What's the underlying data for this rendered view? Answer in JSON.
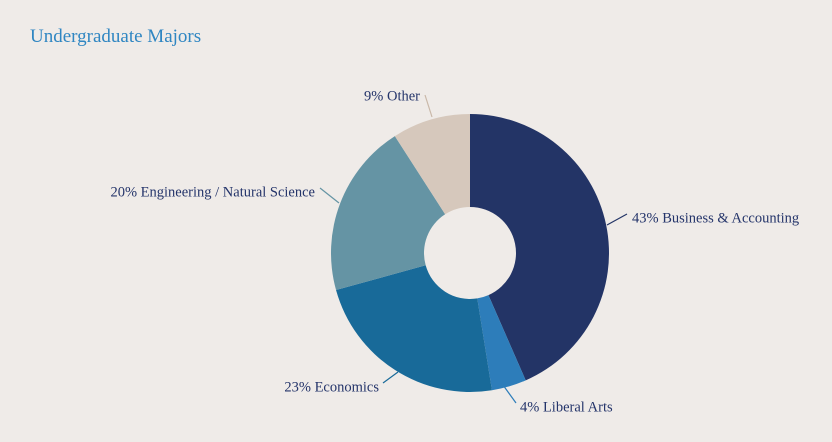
{
  "page": {
    "title": "Undergraduate Majors"
  },
  "chart_data": {
    "type": "pie",
    "donut": true,
    "title": "Undergraduate Majors",
    "slices": [
      {
        "label": "43% Business & Accounting",
        "value": 43,
        "color": "#233466",
        "label_color": "#24346a"
      },
      {
        "label": "4% Liberal Arts",
        "value": 4,
        "color": "#2d7dba",
        "label_color": "#24346a"
      },
      {
        "label": "23% Economics",
        "value": 23,
        "color": "#186a99",
        "label_color": "#24346a"
      },
      {
        "label": "20% Engineering / Natural Science",
        "value": 20,
        "color": "#6594a4",
        "label_color": "#24346a"
      },
      {
        "label": "9% Other",
        "value": 9,
        "color": "#d6c8bc",
        "label_color": "#24346a"
      }
    ],
    "start_angle_deg": 0,
    "direction": "clockwise",
    "legend": "none"
  }
}
